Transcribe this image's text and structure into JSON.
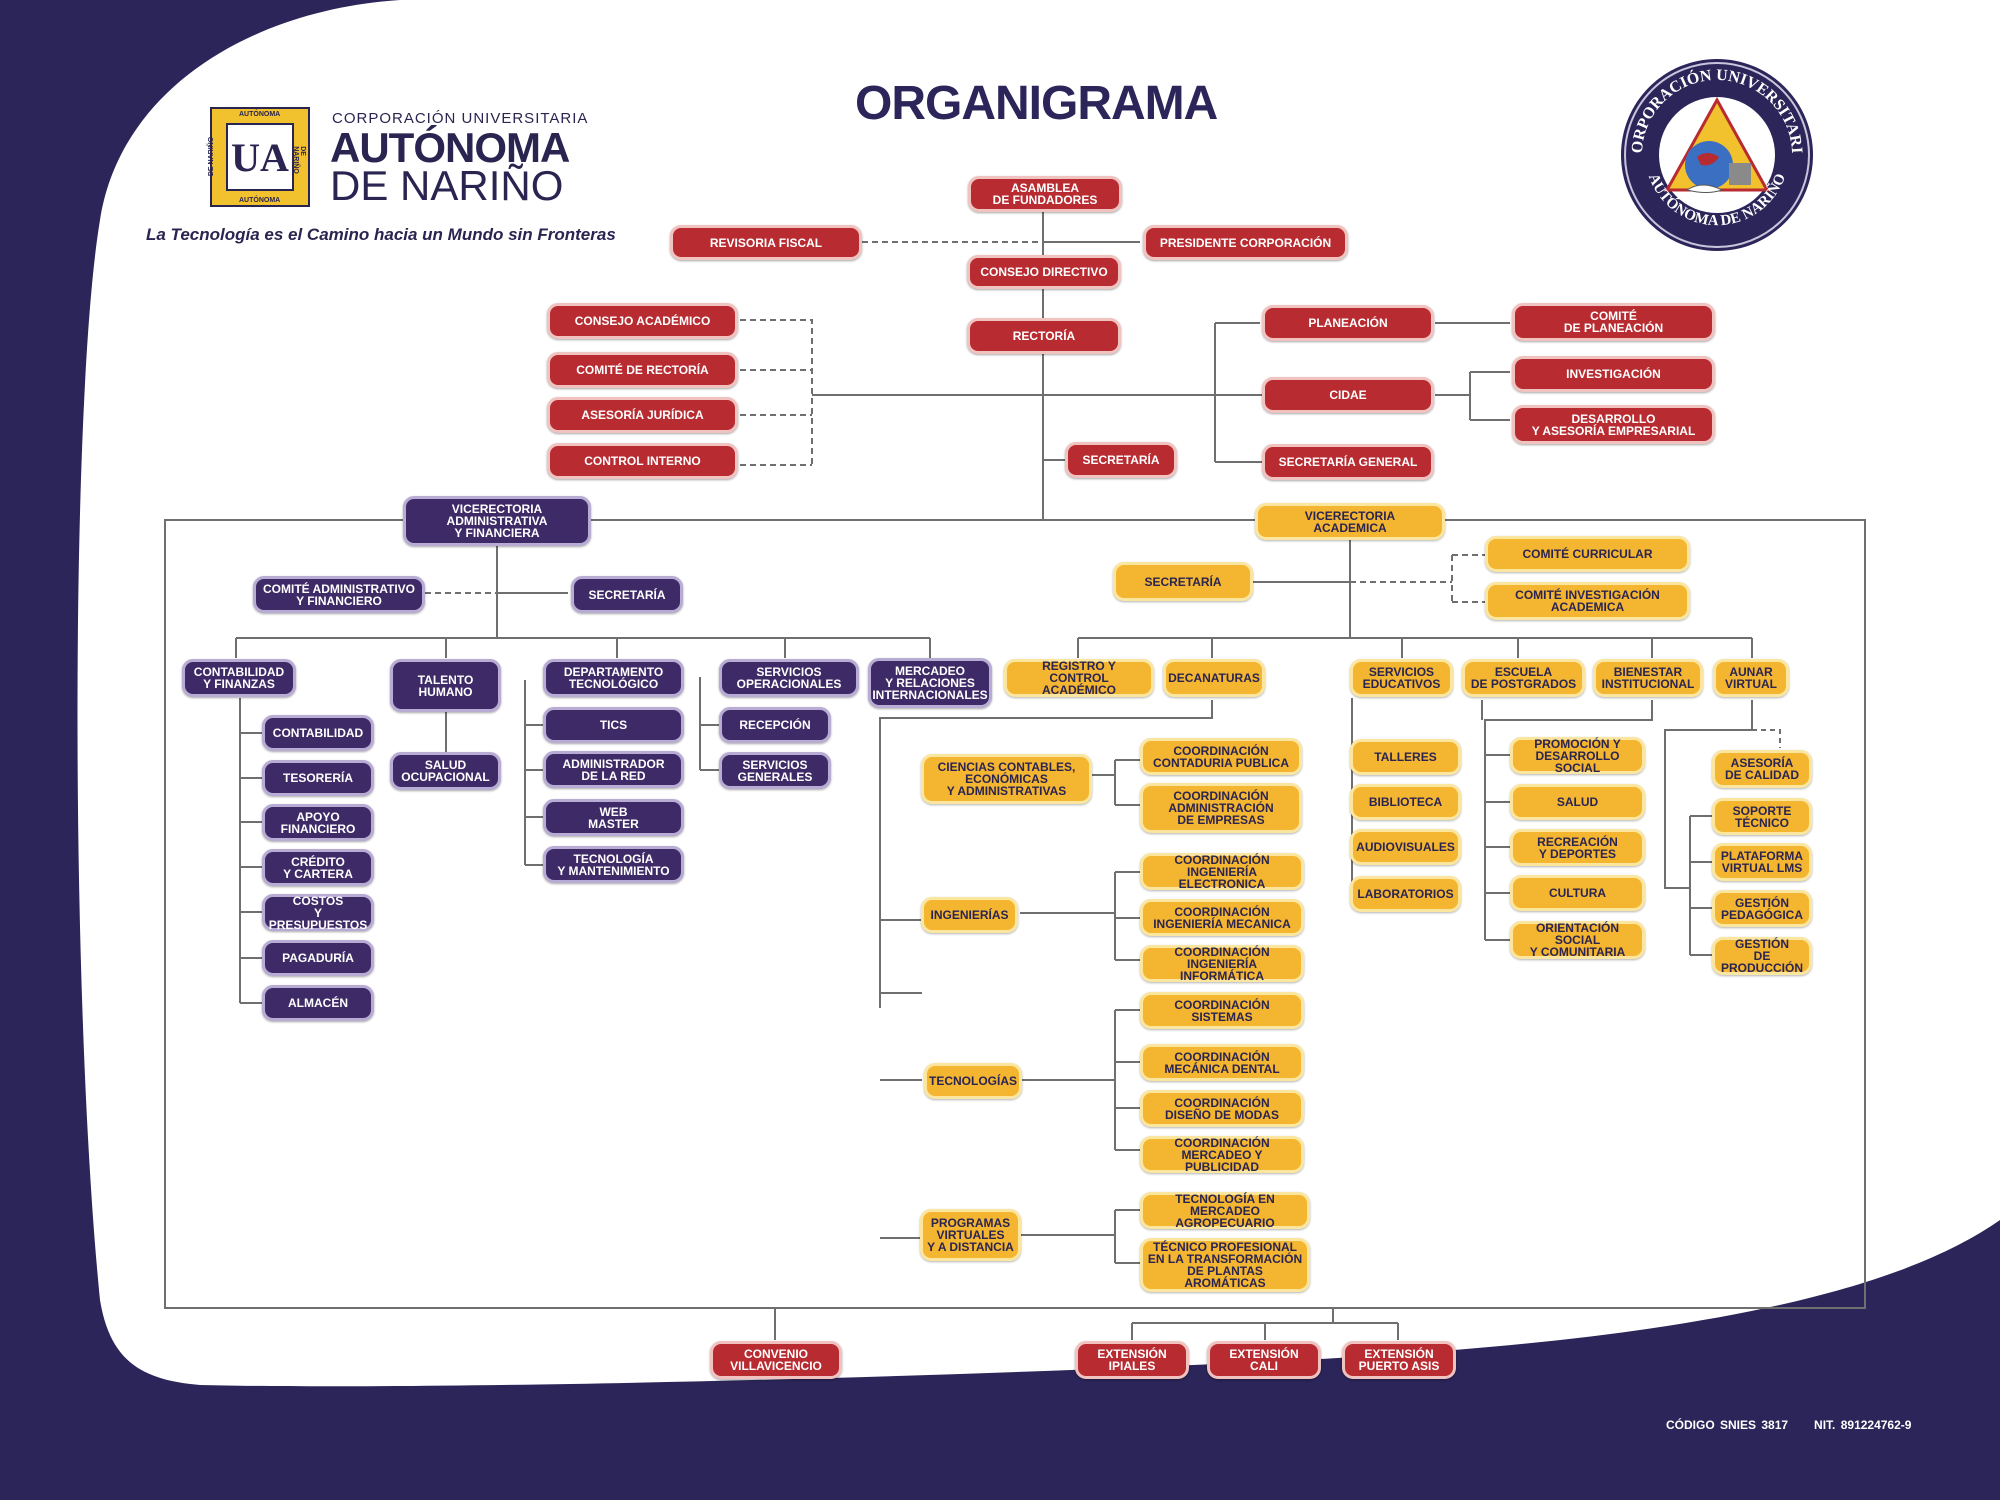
{
  "title": "ORGANIGRAMA",
  "logo": {
    "mark": "UA",
    "ring_top": "AUTÓNOMA",
    "ring_bottom": "AUTÓNOMA",
    "ring_left": "DE NARIÑO",
    "ring_right": "DE NARIÑO",
    "brand_line1": "CORPORACIÓN UNIVERSITARIA",
    "brand_line2": "AUTÓNOMA",
    "brand_line3": "DE NARIÑO",
    "slogan": "La Tecnología es el Camino hacia un Mundo sin Fronteras"
  },
  "seal": {
    "top_text": "CORPORACIÓN UNIVERSITARIA",
    "bottom_text": "AUTÓNOMA DE NARIÑO"
  },
  "footer": {
    "snies": "CÓDIGO SNIES 3817",
    "nit": "NIT. 891224762-9"
  },
  "colors": {
    "red": "#b72b31",
    "purple": "#3d2a66",
    "yellow": "#f4b531",
    "navy": "#2c2559"
  },
  "nodes": {
    "asamblea": "ASAMBLEA\nDE FUNDADORES",
    "revisoria": "REVISORIA FISCAL",
    "presidente": "PRESIDENTE CORPORACIÓN",
    "consejo_directivo": "CONSEJO DIRECTIVO",
    "rectoria": "RECTORÍA",
    "consejo_academico": "CONSEJO ACADÉMICO",
    "comite_rectoria": "COMITÉ DE RECTORÍA",
    "asesoria_juridica": "ASESORÍA JURÍDICA",
    "control_interno": "CONTROL INTERNO",
    "planeacion": "PLANEACIÓN",
    "comite_planeacion": "COMITÉ\nDE PLANEACIÓN",
    "cidae": "CIDAE",
    "investigacion": "INVESTIGACIÓN",
    "desarrollo": "DESARROLLO\nY ASESORÍA EMPRESARIAL",
    "secretaria_general": "SECRETARÍA GENERAL",
    "secretaria_rect": "SECRETARÍA",
    "vicerrectoria_adm": "VICERECTORIA\nADMINISTRATIVA\nY FINANCIERA",
    "comite_adm": "COMITÉ ADMINISTRATIVO\nY FINANCIERO",
    "secretaria_adm": "SECRETARÍA",
    "contabilidad_finanzas": "CONTABILIDAD\nY FINANZAS",
    "contabilidad": "CONTABILIDAD",
    "tesoreria": "TESORERÍA",
    "apoyo": "APOYO\nFINANCIERO",
    "credito": "CRÉDITO\nY CARTERA",
    "costos": "COSTOS\nY PRESUPUESTOS",
    "pagaduria": "PAGADURÍA",
    "almacen": "ALMACÉN",
    "talento": "TALENTO\nHUMANO",
    "salud_ocup": "SALUD\nOCUPACIONAL",
    "depto_tec": "DEPARTAMENTO\nTECNOLÓGICO",
    "tics": "TICS",
    "admin_red": "ADMINISTRADOR\nDE LA RED",
    "webmaster": "WEB\nMASTER",
    "tec_mant": "TECNOLOGÍA\nY MANTENIMIENTO",
    "serv_oper": "SERVICIOS\nOPERACIONALES",
    "recepcion": "RECEPCIÓN",
    "serv_gen": "SERVICIOS\nGENERALES",
    "mercadeo": "MERCADEO\nY RELACIONES\nINTERNACIONALES",
    "vicerrectoria_acad": "VICERECTORIA\nACADEMICA",
    "secretaria_acad": "SECRETARÍA",
    "comite_curricular": "COMITÉ CURRICULAR",
    "comite_inv": "COMITÉ INVESTIGACIÓN\nACADEMICA",
    "registro": "REGISTRO Y CONTROL\nACADÉMICO",
    "decanaturas": "DECANATURAS",
    "ciencias": "CIENCIAS CONTABLES,\nECONÓMICAS\nY ADMINISTRATIVAS",
    "coord_contaduria": "COORDINACIÓN\nCONTADURIA PUBLICA",
    "coord_admin": "COORDINACIÓN\nADMINISTRACIÓN\nDE EMPRESAS",
    "ingenierias": "INGENIERÍAS",
    "coord_electronica": "COORDINACIÓN\nINGENIERÍA ELECTRONICA",
    "coord_mecanica": "COORDINACIÓN\nINGENIERÍA MECANICA",
    "coord_informatica": "COORDINACIÓN\nINGENIERÍA INFORMÁTICA",
    "tecnologias": "TECNOLOGÍAS",
    "coord_sistemas": "COORDINACIÓN\nSISTEMAS",
    "coord_dental": "COORDINACIÓN\nMECÁNICA DENTAL",
    "coord_modas": "COORDINACIÓN\nDISEÑO DE MODAS",
    "coord_mercadeo": "COORDINACIÓN\nMERCADEO Y PUBLICIDAD",
    "programas": "PROGRAMAS\nVIRTUALES\nY A DISTANCIA",
    "tec_agro": "TECNOLOGÍA EN\nMERCADEO AGROPECUARIO",
    "tec_plantas": "TÉCNICO PROFESIONAL\nEN LA TRANSFORMACIÓN\nDE PLANTAS AROMÁTICAS",
    "servicios_educ": "SERVICIOS\nEDUCATIVOS",
    "talleres": "TALLERES",
    "biblioteca": "BIBLIOTECA",
    "audiovisuales": "AUDIOVISUALES",
    "laboratorios": "LABORATORIOS",
    "escuela_post": "ESCUELA\nDE POSTGRADOS",
    "bienestar": "BIENESTAR\nINSTITUCIONAL",
    "promocion": "PROMOCIÓN Y\nDESARROLLO SOCIAL",
    "salud": "SALUD",
    "recreacion": "RECREACIÓN\nY DEPORTES",
    "cultura": "CULTURA",
    "orientacion": "ORIENTACIÓN SOCIAL\nY COMUNITARIA",
    "aunar": "AUNAR\nVIRTUAL",
    "asesoria_calidad": "ASESORÍA\nDE CALIDAD",
    "soporte": "SOPORTE\nTÉCNICO",
    "plataforma": "PLATAFORMA\nVIRTUAL LMS",
    "gestion_ped": "GESTIÓN\nPEDAGÓGICA",
    "gestion_prod": "GESTIÓN\nDE PRODUCCIÓN",
    "convenio": "CONVENIO\nVILLAVICENCIO",
    "ext_ipiales": "EXTENSIÓN\nIPIALES",
    "ext_cali": "EXTENSIÓN\nCALI",
    "ext_puerto": "EXTENSIÓN\nPUERTO ASIS"
  }
}
